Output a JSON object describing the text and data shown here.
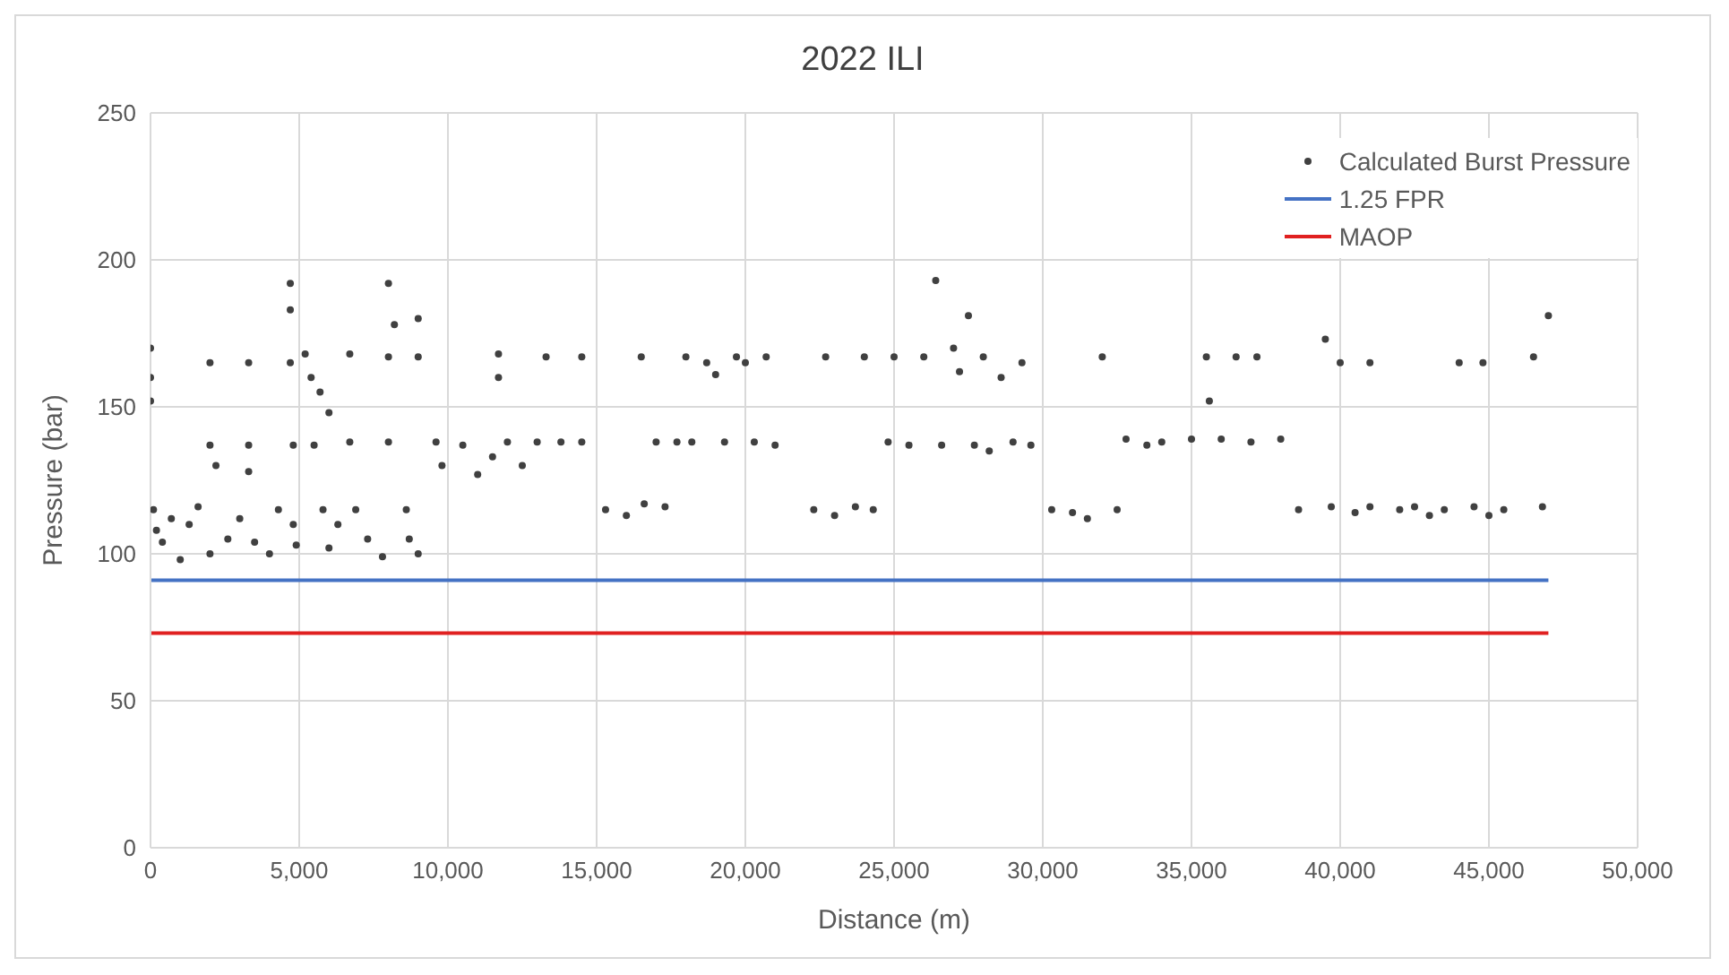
{
  "chart_data": {
    "type": "scatter",
    "title": "2022 ILI",
    "xlabel": "Distance (m)",
    "ylabel": "Pressure (bar)",
    "xlim": [
      0,
      50000
    ],
    "xticks": [
      {
        "value": 0,
        "label": "0"
      },
      {
        "value": 5000,
        "label": "5,000"
      },
      {
        "value": 10000,
        "label": "10,000"
      },
      {
        "value": 15000,
        "label": "15,000"
      },
      {
        "value": 20000,
        "label": "20,000"
      },
      {
        "value": 25000,
        "label": "25,000"
      },
      {
        "value": 30000,
        "label": "30,000"
      },
      {
        "value": 35000,
        "label": "35,000"
      },
      {
        "value": 40000,
        "label": "40,000"
      },
      {
        "value": 45000,
        "label": "45,000"
      },
      {
        "value": 50000,
        "label": "50,000"
      }
    ],
    "ylim": [
      0,
      250
    ],
    "yticks": [
      0,
      50,
      100,
      150,
      200,
      250
    ],
    "grid": true,
    "legend": "top right",
    "marker": "circle",
    "series": [
      {
        "name": "Calculated Burst Pressure",
        "color": "#404040",
        "x": [
          0,
          0,
          0,
          100,
          200,
          400,
          700,
          1000,
          1300,
          1600,
          2000,
          2000,
          2000,
          2200,
          2600,
          3000,
          3300,
          3300,
          3300,
          3500,
          4000,
          4300,
          4700,
          4700,
          4700,
          4800,
          4800,
          4900,
          5200,
          5400,
          5700,
          6000,
          5500,
          5800,
          6000,
          6300,
          6700,
          6700,
          6900,
          7300,
          7800,
          8000,
          8000,
          8000,
          8200,
          8600,
          8700,
          9000,
          9000,
          9000,
          9600,
          9800,
          10500,
          11000,
          11500,
          11700,
          11700,
          12000,
          12500,
          13000,
          13300,
          13800,
          14500,
          14500,
          15300,
          16000,
          16500,
          16600,
          17000,
          17300,
          17700,
          18000,
          18200,
          18700,
          19000,
          19300,
          19700,
          20000,
          20300,
          20700,
          21000,
          22300,
          22700,
          23000,
          23700,
          24000,
          24300,
          24800,
          25000,
          25500,
          26000,
          26400,
          26600,
          27000,
          27200,
          27500,
          27700,
          28000,
          28200,
          28600,
          29000,
          29300,
          29600,
          30300,
          31000,
          31500,
          32000,
          32500,
          32800,
          33500,
          34000,
          35000,
          35500,
          35600,
          36000,
          36500,
          37000,
          37200,
          38000,
          38600,
          39500,
          39700,
          40000,
          40500,
          41000,
          41000,
          42000,
          42500,
          43000,
          43500,
          44000,
          44500,
          44800,
          45000,
          45500,
          46500,
          46800,
          47000
        ],
        "values": [
          170,
          160,
          152,
          115,
          108,
          104,
          112,
          98,
          110,
          116,
          100,
          165,
          137,
          130,
          105,
          112,
          165,
          137,
          128,
          104,
          100,
          115,
          192,
          183,
          165,
          137,
          110,
          103,
          168,
          160,
          155,
          148,
          137,
          115,
          102,
          110,
          138,
          168,
          115,
          105,
          99,
          192,
          167,
          138,
          178,
          115,
          105,
          180,
          167,
          100,
          138,
          130,
          137,
          127,
          133,
          168,
          160,
          138,
          130,
          138,
          167,
          138,
          138,
          167,
          115,
          113,
          167,
          117,
          138,
          116,
          138,
          167,
          138,
          165,
          161,
          138,
          167,
          165,
          138,
          167,
          137,
          115,
          167,
          113,
          116,
          167,
          115,
          138,
          167,
          137,
          167,
          193,
          137,
          170,
          162,
          181,
          137,
          167,
          135,
          160,
          138,
          165,
          137,
          115,
          114,
          112,
          167,
          115,
          139,
          137,
          138,
          139,
          167,
          152,
          139,
          167,
          138,
          167,
          139,
          115,
          173,
          116,
          165,
          114,
          165,
          116,
          115,
          116,
          113,
          115,
          165,
          116,
          165,
          113,
          115,
          167,
          116,
          181
        ]
      },
      {
        "name": "1.25 FPR",
        "type": "line",
        "marker": "none",
        "color": "#4472c4",
        "x": [
          0,
          47000
        ],
        "values": [
          91,
          91
        ]
      },
      {
        "name": "MAOP",
        "type": "line",
        "marker": "none",
        "color": "#e02020",
        "x": [
          0,
          47000
        ],
        "values": [
          73,
          73
        ]
      }
    ]
  }
}
